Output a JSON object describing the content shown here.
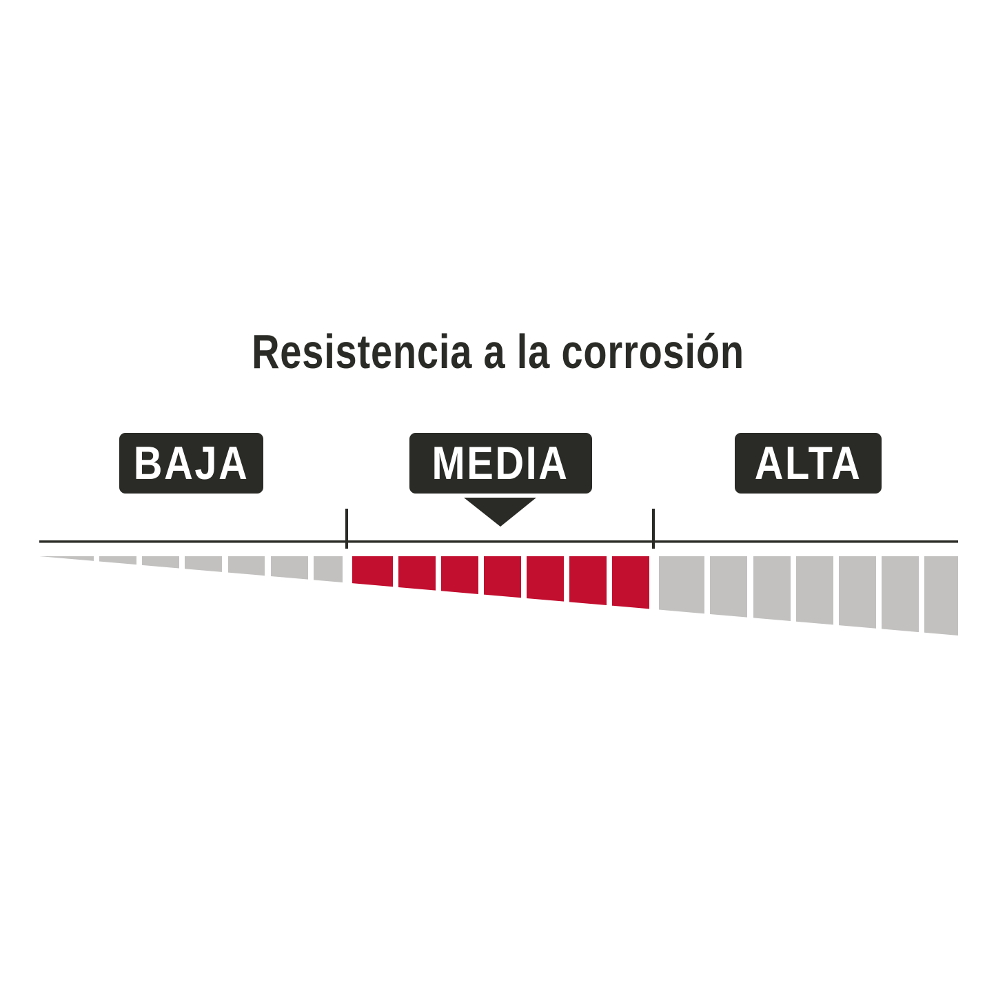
{
  "title": "Resistencia a la corrosión",
  "levels": [
    {
      "label": "BAJA",
      "selected": false
    },
    {
      "label": "MEDIA",
      "selected": true
    },
    {
      "label": "ALTA",
      "selected": false
    }
  ],
  "selected_level": "MEDIA",
  "segments_per_level": 7,
  "colors": {
    "active": "#c20e2f",
    "inactive": "#c2c1c0",
    "dark": "#2a2a26"
  }
}
